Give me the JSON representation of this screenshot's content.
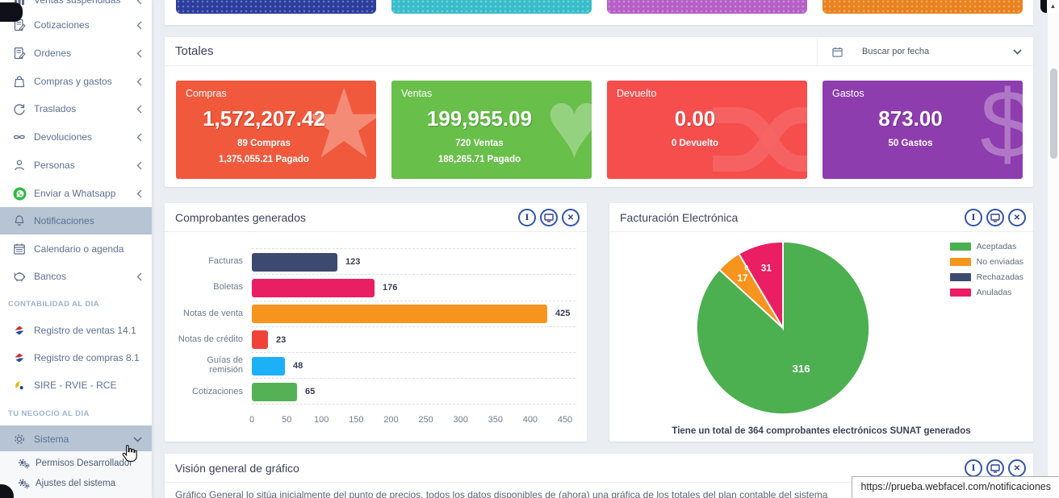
{
  "accent_blue": "#3356a6",
  "sidebar": {
    "active_bg": "#b6c4d4",
    "menu": [
      {
        "label": "Ventas suspendidas",
        "icon": "bar-chart-icon",
        "chevron": true
      },
      {
        "label": "Cotizaciones",
        "icon": "document-edit-icon",
        "chevron": true
      },
      {
        "label": "Ordenes",
        "icon": "document-edit-icon",
        "chevron": true
      },
      {
        "label": "Compras y gastos",
        "icon": "shopping-bag-icon",
        "chevron": true
      },
      {
        "label": "Traslados",
        "icon": "sync-icon",
        "chevron": true
      },
      {
        "label": "Devoluciones",
        "icon": "infinity-icon",
        "chevron": true
      },
      {
        "label": "Personas",
        "icon": "person-icon",
        "chevron": true
      },
      {
        "label": "Enviar a Whatsapp",
        "icon": "whatsapp-icon",
        "chevron": true
      },
      {
        "label": "Notificaciones",
        "icon": "bell-icon",
        "chevron": false,
        "active": true
      },
      {
        "label": "Calendario o agenda",
        "icon": "calendar-icon",
        "chevron": false
      },
      {
        "label": "Bancos",
        "icon": "piggy-bank-icon",
        "chevron": true
      }
    ],
    "section_contabilidad": {
      "label": "CONTABILIDAD AL DIA",
      "items": [
        {
          "label": "Registro de ventas 14.1",
          "icon": "perucontable-icon"
        },
        {
          "label": "Registro de compras 8.1",
          "icon": "perucontable-icon"
        },
        {
          "label": "SIRE - RVIE - RCE",
          "icon": "sire-icon"
        }
      ]
    },
    "section_negocio": {
      "label": "TU NEGOCIO AL DIA",
      "parent": {
        "label": "Sistema",
        "icon": "gear-icon",
        "expanded": true
      },
      "submenu": [
        {
          "label": "Permisos Desarrollador",
          "icon": "cogs-icon"
        },
        {
          "label": "Ajustes del sistema",
          "icon": "cogs-icon"
        }
      ]
    }
  },
  "top_cards": [
    {
      "name": "card-blue",
      "color": "#2b3d9d"
    },
    {
      "name": "card-teal",
      "color": "#38bcc9"
    },
    {
      "name": "card-violet",
      "color": "#b55fc6"
    },
    {
      "name": "card-orange",
      "color": "#e8821e"
    }
  ],
  "totales": {
    "title": "Totales",
    "date_filter_label": "Buscar por fecha",
    "cards": [
      {
        "name": "compras",
        "title": "Compras",
        "value": "1,572,207.42",
        "line1": "89 Compras",
        "line2": "1,375,055.21 Pagado",
        "color": "#f0593c",
        "watermark": "star-icon"
      },
      {
        "name": "ventas",
        "title": "Ventas",
        "value": "199,955.09",
        "line1": "720 Ventas",
        "line2": "188,265.71 Pagado",
        "color": "#68bf4a",
        "watermark": "heart-icon"
      },
      {
        "name": "devuelto",
        "title": "Devuelto",
        "value": "0.00",
        "line1": "0 Devuelto",
        "line2": "",
        "color": "#f54e4d",
        "watermark": "shuffle-icon"
      },
      {
        "name": "gastos",
        "title": "Gastos",
        "value": "873.00",
        "line1": "50 Gastos",
        "line2": "",
        "color": "#8e3daf",
        "watermark": "dollar-icon"
      }
    ]
  },
  "comprobantes": {
    "title": "Comprobantes generados"
  },
  "facturacion": {
    "title": "Facturación Electrónica",
    "footer": "Tiene un total de 364 comprobantes electrónicos SUNAT generados"
  },
  "vision": {
    "title": "Visión general de gráfico",
    "body_partial": "Gráfico General lo sitúa inicialmente del punto de precios, todos los datos disponibles de (ahora) una gráfica de los totales del plan contable del sistema"
  },
  "panel_action_icons": [
    "info",
    "monitor",
    "close"
  ],
  "status_url": "https://prueba.webfacel.com/notificaciones",
  "chart_data": [
    {
      "type": "bar",
      "orientation": "horizontal",
      "title": "Comprobantes generados",
      "categories": [
        "Facturas",
        "Boletas",
        "Notas de venta",
        "Notas de crédito",
        "Guías de remisión",
        "Cotizaciones"
      ],
      "values": [
        123,
        176,
        425,
        23,
        48,
        65
      ],
      "colors": [
        "#3d4a70",
        "#e91e63",
        "#f7941d",
        "#ef4339",
        "#1cb0f6",
        "#55b156"
      ],
      "xlim": [
        0,
        450
      ],
      "xticks": [
        0,
        50,
        100,
        150,
        200,
        250,
        300,
        350,
        400,
        450
      ],
      "grid": "dashed-horizontal"
    },
    {
      "type": "pie",
      "title": "Facturación Electrónica",
      "labels": [
        "Aceptadas",
        "No enviadas",
        "Rechazadas",
        "Anuladas"
      ],
      "values": [
        316,
        17,
        0,
        31
      ],
      "colors": [
        "#4caf50",
        "#f7941d",
        "#3d4a70",
        "#e91e63"
      ],
      "total": 364,
      "legend_position": "right",
      "slice_label_color": "#ffffff"
    }
  ]
}
